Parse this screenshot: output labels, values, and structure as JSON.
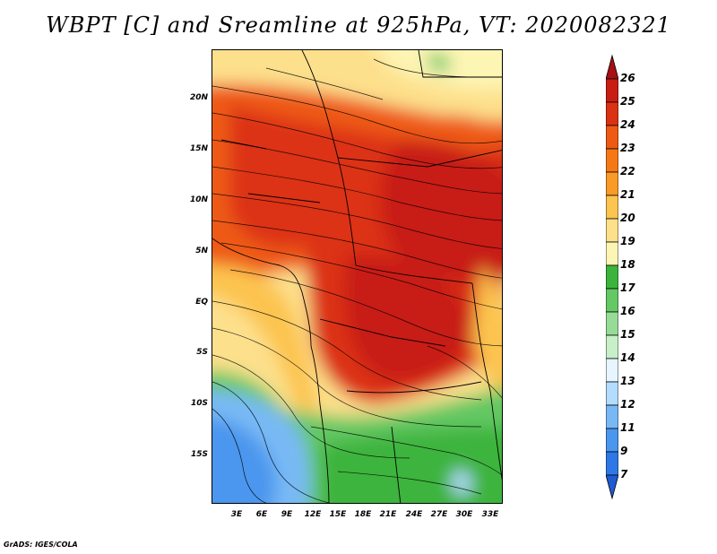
{
  "title": "WBPT [C] and Sreamline at 925hPa, VT: 2020082321",
  "footer": "GrADS: IGES/COLA",
  "map": {
    "latitude_labels": [
      "20N",
      "15N",
      "10N",
      "5N",
      "EQ",
      "5S",
      "10S",
      "15S"
    ],
    "longitude_labels": [
      "3E",
      "6E",
      "9E",
      "12E",
      "15E",
      "18E",
      "21E",
      "24E",
      "27E",
      "30E",
      "33E"
    ],
    "lon_range": [
      0.5,
      35
    ],
    "lat_range": [
      -20,
      24.5
    ]
  },
  "colorbar": {
    "levels": [
      "26",
      "25",
      "24",
      "23",
      "22",
      "21",
      "20",
      "19",
      "18",
      "17",
      "16",
      "15",
      "14",
      "13",
      "12",
      "11",
      "9",
      "7"
    ],
    "colors": [
      "#a50f15",
      "#c81e14",
      "#dc3214",
      "#ee5a14",
      "#f67814",
      "#fa9a28",
      "#fcc450",
      "#fde08c",
      "#fdf5b4",
      "#3cb43c",
      "#64c864",
      "#96dc96",
      "#c8f0c8",
      "#e6f5ff",
      "#b4dcff",
      "#78b9f5",
      "#4b96ee",
      "#2d78e6",
      "#1e5ad2"
    ]
  },
  "colors": {
    "hot": "#c81e14",
    "warm": "#ee5a14",
    "mild": "#fcc450",
    "cool": "#64c864",
    "cold": "#78b9f5"
  }
}
